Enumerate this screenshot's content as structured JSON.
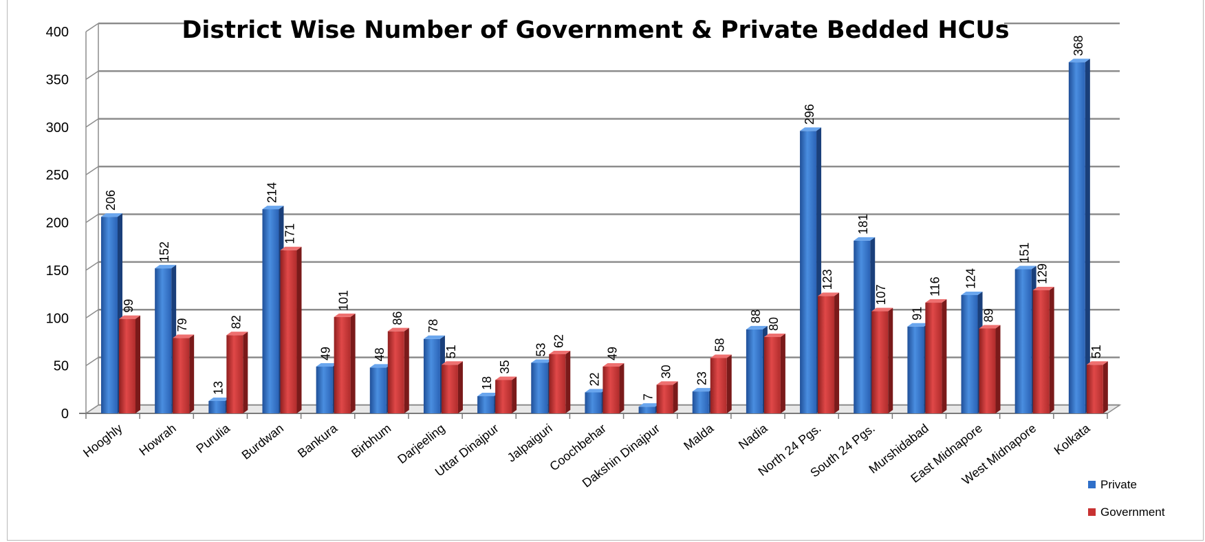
{
  "chart_data": {
    "type": "bar",
    "title": "District Wise Number of Government & Private Bedded HCUs",
    "categories": [
      "Hooghly",
      "Howrah",
      "Purulia",
      "Burdwan",
      "Bankura",
      "Birbhum",
      "Darjeeling",
      "Uttar Dinajpur",
      "Jalpaiguri",
      "Coochbehar",
      "Dakshin Dinajpur",
      "Malda",
      "Nadia",
      "North 24 Pgs.",
      "South 24 Pgs.",
      "Murshidabad",
      "East Midnapore",
      "West Midnapore",
      "Kolkata"
    ],
    "series": [
      {
        "name": "Private",
        "color": "#2f6fc9",
        "values": [
          206,
          152,
          13,
          214,
          49,
          48,
          78,
          18,
          53,
          22,
          7,
          23,
          88,
          296,
          181,
          91,
          124,
          151,
          368
        ]
      },
      {
        "name": "Government",
        "color": "#c83232",
        "values": [
          99,
          79,
          82,
          171,
          101,
          86,
          51,
          35,
          62,
          49,
          30,
          58,
          80,
          123,
          107,
          116,
          89,
          129,
          51
        ]
      }
    ],
    "ylim": [
      0,
      400
    ],
    "yticks": [
      0,
      50,
      100,
      150,
      200,
      250,
      300,
      350,
      400
    ],
    "grid": true,
    "legend_position": "bottom-right",
    "xlabel": "",
    "ylabel": ""
  }
}
